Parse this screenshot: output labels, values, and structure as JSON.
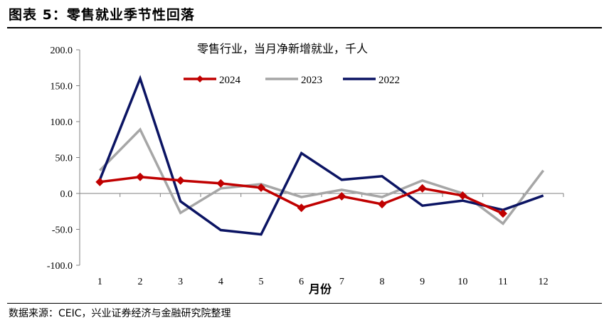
{
  "figure": {
    "title": "图表 5：零售就业季节性回落",
    "source": "数据来源：CEIC，兴业证券经济与金融研究院整理"
  },
  "chart_data": {
    "type": "line",
    "title": "零售行业，当月净新增就业，千人",
    "xlabel": "月份",
    "ylabel": "",
    "categories": [
      "1",
      "2",
      "3",
      "4",
      "5",
      "6",
      "7",
      "8",
      "9",
      "10",
      "11",
      "12"
    ],
    "yticks": [
      "200.0",
      "150.0",
      "100.0",
      "50.0",
      "0.0",
      "-50.0",
      "-100.0"
    ],
    "ylim": [
      -100,
      200
    ],
    "grid": false,
    "legend_position": "top-center",
    "series": [
      {
        "name": "2024",
        "color": "#c00000",
        "marker": "diamond",
        "values": [
          16,
          23,
          18,
          14,
          8,
          -20,
          -4,
          -15,
          7,
          -3,
          -28,
          null
        ]
      },
      {
        "name": "2023",
        "color": "#a6a6a6",
        "marker": "none",
        "values": [
          32,
          89,
          -27,
          7,
          13,
          -5,
          5,
          -5,
          18,
          0,
          -42,
          32
        ]
      },
      {
        "name": "2022",
        "color": "#0b1463",
        "marker": "none",
        "values": [
          19,
          160,
          -11,
          -51,
          -57,
          56,
          19,
          24,
          -17,
          -10,
          -23,
          -3
        ]
      }
    ]
  }
}
